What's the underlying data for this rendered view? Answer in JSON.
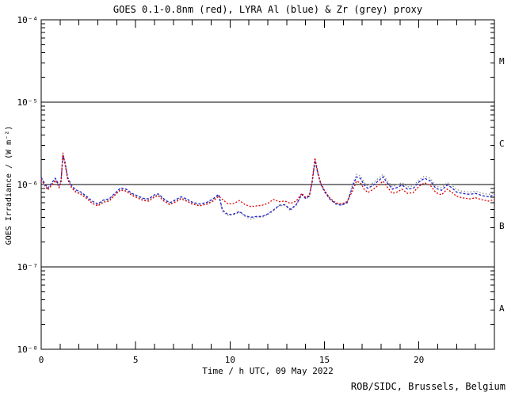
{
  "figure": {
    "credit": "ROB/SIDC, Brussels, Belgium"
  },
  "chart_data": {
    "type": "line",
    "title": "GOES 0.1-0.8nm (red), LYRA Al (blue) & Zr (grey) proxy",
    "xlabel": "Time / h UTC, 09 May 2022",
    "ylabel": "GOES Irradiance / (W m⁻²)",
    "grid": false,
    "legend_position": "none",
    "x_axis": {
      "min": 0,
      "max": 24,
      "minor_step": 1,
      "major_ticks": [
        0,
        5,
        10,
        15,
        20
      ],
      "tick_labels": [
        "0",
        "5",
        "10",
        "15",
        "20"
      ]
    },
    "y_axis": {
      "scale": "log",
      "min_exp": -8,
      "max_exp": -4,
      "ticks": [
        {
          "exp": -4,
          "label": "10⁻⁴"
        },
        {
          "exp": -5,
          "label": "10⁻⁵"
        },
        {
          "exp": -6,
          "label": "10⁻⁶"
        },
        {
          "exp": -7,
          "label": "10⁻⁷"
        },
        {
          "exp": -8,
          "label": "10⁻⁸"
        }
      ]
    },
    "hlines": [
      1e-05,
      1e-06,
      1e-07
    ],
    "flare_classes": [
      {
        "label": "M",
        "mid_exp": -4.5
      },
      {
        "label": "C",
        "mid_exp": -5.5
      },
      {
        "label": "B",
        "mid_exp": -6.5
      },
      {
        "label": "A",
        "mid_exp": -7.5
      }
    ],
    "series": [
      {
        "name": "LYRA Zr proxy",
        "color": "#909090",
        "dash": "1.5 2.5",
        "points": [
          [
            0.0,
            1.18e-06
          ],
          [
            0.15,
            1.02e-06
          ],
          [
            0.35,
            8.8e-07
          ],
          [
            0.55,
            1e-06
          ],
          [
            0.75,
            1.15e-06
          ],
          [
            0.95,
            9.5e-07
          ],
          [
            1.05,
            1.08e-06
          ],
          [
            1.15,
            2.45e-06
          ],
          [
            1.25,
            1.95e-06
          ],
          [
            1.4,
            1.18e-06
          ],
          [
            1.6,
            9.5e-07
          ],
          [
            1.8,
            8.4e-07
          ],
          [
            2.1,
            7.8e-07
          ],
          [
            2.4,
            7e-07
          ],
          [
            2.7,
            6e-07
          ],
          [
            3.0,
            5.6e-07
          ],
          [
            3.3,
            6.3e-07
          ],
          [
            3.6,
            6.5e-07
          ],
          [
            3.9,
            7.6e-07
          ],
          [
            4.2,
            8.8e-07
          ],
          [
            4.5,
            8.5e-07
          ],
          [
            4.8,
            7.6e-07
          ],
          [
            5.1,
            7.1e-07
          ],
          [
            5.4,
            6.6e-07
          ],
          [
            5.7,
            6.5e-07
          ],
          [
            6.0,
            7.3e-07
          ],
          [
            6.2,
            7.5e-07
          ],
          [
            6.5,
            6.5e-07
          ],
          [
            6.8,
            5.8e-07
          ],
          [
            7.1,
            6.3e-07
          ],
          [
            7.4,
            6.9e-07
          ],
          [
            7.7,
            6.5e-07
          ],
          [
            8.0,
            5.9e-07
          ],
          [
            8.4,
            5.6e-07
          ],
          [
            8.8,
            5.9e-07
          ],
          [
            9.1,
            6.5e-07
          ],
          [
            9.4,
            7.4e-07
          ],
          [
            9.6,
            4.7e-07
          ],
          [
            9.9,
            4.2e-07
          ],
          [
            10.2,
            4.3e-07
          ],
          [
            10.5,
            4.6e-07
          ],
          [
            10.8,
            4.1e-07
          ],
          [
            11.1,
            3.8e-07
          ],
          [
            11.4,
            4e-07
          ],
          [
            11.7,
            4e-07
          ],
          [
            12.0,
            4.3e-07
          ],
          [
            12.3,
            4.8e-07
          ],
          [
            12.6,
            5.5e-07
          ],
          [
            12.9,
            5.6e-07
          ],
          [
            13.2,
            4.8e-07
          ],
          [
            13.5,
            5.6e-07
          ],
          [
            13.8,
            7.5e-07
          ],
          [
            14.0,
            6.7e-07
          ],
          [
            14.2,
            7.1e-07
          ],
          [
            14.35,
            1.1e-06
          ],
          [
            14.5,
            2.05e-06
          ],
          [
            14.65,
            1.38e-06
          ],
          [
            14.8,
            1.04e-06
          ],
          [
            15.0,
            8.4e-07
          ],
          [
            15.3,
            6.7e-07
          ],
          [
            15.6,
            5.9e-07
          ],
          [
            15.9,
            5.7e-07
          ],
          [
            16.2,
            6.1e-07
          ],
          [
            16.5,
            1.02e-06
          ],
          [
            16.7,
            1.33e-06
          ],
          [
            16.9,
            1.27e-06
          ],
          [
            17.1,
            1.06e-06
          ],
          [
            17.3,
            9.6e-07
          ],
          [
            17.6,
            1.06e-06
          ],
          [
            17.9,
            1.21e-06
          ],
          [
            18.1,
            1.33e-06
          ],
          [
            18.3,
            1.14e-06
          ],
          [
            18.6,
            9.4e-07
          ],
          [
            18.9,
            1e-06
          ],
          [
            19.1,
            1.06e-06
          ],
          [
            19.4,
            9.4e-07
          ],
          [
            19.7,
            9.6e-07
          ],
          [
            20.0,
            1.14e-06
          ],
          [
            20.3,
            1.27e-06
          ],
          [
            20.6,
            1.19e-06
          ],
          [
            20.9,
            9.6e-07
          ],
          [
            21.2,
            9.1e-07
          ],
          [
            21.5,
            1.06e-06
          ],
          [
            21.7,
            1e-06
          ],
          [
            22.0,
            8.7e-07
          ],
          [
            22.3,
            8.3e-07
          ],
          [
            22.7,
            8.1e-07
          ],
          [
            23.0,
            8.3e-07
          ],
          [
            23.4,
            7.8e-07
          ],
          [
            23.7,
            7.6e-07
          ],
          [
            24.0,
            8e-07
          ]
        ]
      },
      {
        "name": "LYRA Al proxy",
        "color": "#2222cc",
        "dash": "3 2",
        "points": [
          [
            0.0,
            1.22e-06
          ],
          [
            0.15,
            1.06e-06
          ],
          [
            0.35,
            9.1e-07
          ],
          [
            0.55,
            1.04e-06
          ],
          [
            0.75,
            1.19e-06
          ],
          [
            0.95,
            9.8e-07
          ],
          [
            1.05,
            1.11e-06
          ],
          [
            1.15,
            2.2e-06
          ],
          [
            1.25,
            1.91e-06
          ],
          [
            1.4,
            1.22e-06
          ],
          [
            1.6,
            9.8e-07
          ],
          [
            1.8,
            8.7e-07
          ],
          [
            2.1,
            8.1e-07
          ],
          [
            2.4,
            7.2e-07
          ],
          [
            2.7,
            6.3e-07
          ],
          [
            3.0,
            5.8e-07
          ],
          [
            3.3,
            6.5e-07
          ],
          [
            3.6,
            6.7e-07
          ],
          [
            3.9,
            7.8e-07
          ],
          [
            4.2,
            9.1e-07
          ],
          [
            4.5,
            8.8e-07
          ],
          [
            4.8,
            7.8e-07
          ],
          [
            5.1,
            7.3e-07
          ],
          [
            5.4,
            6.8e-07
          ],
          [
            5.7,
            6.7e-07
          ],
          [
            6.0,
            7.5e-07
          ],
          [
            6.2,
            7.7e-07
          ],
          [
            6.5,
            6.7e-07
          ],
          [
            6.8,
            6e-07
          ],
          [
            7.1,
            6.5e-07
          ],
          [
            7.4,
            7.1e-07
          ],
          [
            7.7,
            6.7e-07
          ],
          [
            8.0,
            6.1e-07
          ],
          [
            8.4,
            5.8e-07
          ],
          [
            8.8,
            6.1e-07
          ],
          [
            9.1,
            6.7e-07
          ],
          [
            9.4,
            7.6e-07
          ],
          [
            9.6,
            4.9e-07
          ],
          [
            9.9,
            4.3e-07
          ],
          [
            10.2,
            4.4e-07
          ],
          [
            10.5,
            4.7e-07
          ],
          [
            10.8,
            4.2e-07
          ],
          [
            11.1,
            4e-07
          ],
          [
            11.4,
            4.1e-07
          ],
          [
            11.7,
            4.1e-07
          ],
          [
            12.0,
            4.4e-07
          ],
          [
            12.3,
            4.9e-07
          ],
          [
            12.6,
            5.6e-07
          ],
          [
            12.9,
            5.7e-07
          ],
          [
            13.2,
            5e-07
          ],
          [
            13.5,
            5.7e-07
          ],
          [
            13.8,
            7.6e-07
          ],
          [
            14.0,
            6.8e-07
          ],
          [
            14.2,
            7.2e-07
          ],
          [
            14.35,
            1.07e-06
          ],
          [
            14.5,
            1.95e-06
          ],
          [
            14.65,
            1.36e-06
          ],
          [
            14.8,
            1.02e-06
          ],
          [
            15.0,
            8.2e-07
          ],
          [
            15.3,
            6.6e-07
          ],
          [
            15.6,
            5.8e-07
          ],
          [
            15.9,
            5.6e-07
          ],
          [
            16.2,
            6e-07
          ],
          [
            16.5,
            9.6e-07
          ],
          [
            16.7,
            1.24e-06
          ],
          [
            16.9,
            1.19e-06
          ],
          [
            17.1,
            9.9e-07
          ],
          [
            17.3,
            9e-07
          ],
          [
            17.6,
            9.9e-07
          ],
          [
            17.9,
            1.13e-06
          ],
          [
            18.1,
            1.24e-06
          ],
          [
            18.3,
            1.07e-06
          ],
          [
            18.6,
            8.8e-07
          ],
          [
            18.9,
            9.3e-07
          ],
          [
            19.1,
            9.9e-07
          ],
          [
            19.4,
            8.8e-07
          ],
          [
            19.7,
            9e-07
          ],
          [
            20.0,
            1.07e-06
          ],
          [
            20.3,
            1.19e-06
          ],
          [
            20.6,
            1.11e-06
          ],
          [
            20.9,
            9e-07
          ],
          [
            21.2,
            8.5e-07
          ],
          [
            21.5,
            9.9e-07
          ],
          [
            21.7,
            9.3e-07
          ],
          [
            22.0,
            8.1e-07
          ],
          [
            22.3,
            7.8e-07
          ],
          [
            22.7,
            7.6e-07
          ],
          [
            23.0,
            7.8e-07
          ],
          [
            23.4,
            7.3e-07
          ],
          [
            23.7,
            7.1e-07
          ],
          [
            24.0,
            7.5e-07
          ]
        ]
      },
      {
        "name": "GOES 0.1-0.8nm",
        "color": "#dd0000",
        "dash": "2 2",
        "points": [
          [
            0.0,
            1.15e-06
          ],
          [
            0.15,
            1e-06
          ],
          [
            0.35,
            8.6e-07
          ],
          [
            0.55,
            9.8e-07
          ],
          [
            0.75,
            1.12e-06
          ],
          [
            0.95,
            9.2e-07
          ],
          [
            1.05,
            1.05e-06
          ],
          [
            1.15,
            2.4e-06
          ],
          [
            1.25,
            1.8e-06
          ],
          [
            1.4,
            1.15e-06
          ],
          [
            1.6,
            9.2e-07
          ],
          [
            1.8,
            8.2e-07
          ],
          [
            2.1,
            7.6e-07
          ],
          [
            2.4,
            6.8e-07
          ],
          [
            2.7,
            5.9e-07
          ],
          [
            3.0,
            5.5e-07
          ],
          [
            3.3,
            6.1e-07
          ],
          [
            3.6,
            6.3e-07
          ],
          [
            3.9,
            7.4e-07
          ],
          [
            4.2,
            8.6e-07
          ],
          [
            4.5,
            8.3e-07
          ],
          [
            4.8,
            7.4e-07
          ],
          [
            5.1,
            6.9e-07
          ],
          [
            5.4,
            6.4e-07
          ],
          [
            5.7,
            6.3e-07
          ],
          [
            6.0,
            7.1e-07
          ],
          [
            6.2,
            7.3e-07
          ],
          [
            6.5,
            6.3e-07
          ],
          [
            6.8,
            5.7e-07
          ],
          [
            7.1,
            6.1e-07
          ],
          [
            7.4,
            6.7e-07
          ],
          [
            7.7,
            6.3e-07
          ],
          [
            8.0,
            5.8e-07
          ],
          [
            8.4,
            5.5e-07
          ],
          [
            8.8,
            5.8e-07
          ],
          [
            9.1,
            6.3e-07
          ],
          [
            9.4,
            7.2e-07
          ],
          [
            9.6,
            6.6e-07
          ],
          [
            9.9,
            5.8e-07
          ],
          [
            10.2,
            5.9e-07
          ],
          [
            10.5,
            6.4e-07
          ],
          [
            10.8,
            5.7e-07
          ],
          [
            11.1,
            5.4e-07
          ],
          [
            11.4,
            5.5e-07
          ],
          [
            11.7,
            5.6e-07
          ],
          [
            12.0,
            5.9e-07
          ],
          [
            12.3,
            6.6e-07
          ],
          [
            12.6,
            6.2e-07
          ],
          [
            12.9,
            6.3e-07
          ],
          [
            13.2,
            5.9e-07
          ],
          [
            13.5,
            6.3e-07
          ],
          [
            13.8,
            7.8e-07
          ],
          [
            14.0,
            7e-07
          ],
          [
            14.2,
            7.4e-07
          ],
          [
            14.35,
            1.1e-06
          ],
          [
            14.5,
            2.1e-06
          ],
          [
            14.65,
            1.4e-06
          ],
          [
            14.8,
            1.05e-06
          ],
          [
            15.0,
            8.5e-07
          ],
          [
            15.3,
            6.8e-07
          ],
          [
            15.6,
            6e-07
          ],
          [
            15.9,
            5.8e-07
          ],
          [
            16.2,
            6.2e-07
          ],
          [
            16.5,
            8.5e-07
          ],
          [
            16.7,
            1.1e-06
          ],
          [
            16.9,
            1.05e-06
          ],
          [
            17.1,
            8.8e-07
          ],
          [
            17.3,
            8e-07
          ],
          [
            17.6,
            8.8e-07
          ],
          [
            17.9,
            1e-06
          ],
          [
            18.1,
            1.1e-06
          ],
          [
            18.3,
            9.5e-07
          ],
          [
            18.6,
            7.8e-07
          ],
          [
            18.9,
            8.2e-07
          ],
          [
            19.1,
            8.8e-07
          ],
          [
            19.4,
            7.8e-07
          ],
          [
            19.7,
            8e-07
          ],
          [
            20.0,
            9.5e-07
          ],
          [
            20.3,
            1.05e-06
          ],
          [
            20.6,
            9.8e-07
          ],
          [
            20.9,
            8e-07
          ],
          [
            21.2,
            7.5e-07
          ],
          [
            21.5,
            8.8e-07
          ],
          [
            21.7,
            8.2e-07
          ],
          [
            22.0,
            7.2e-07
          ],
          [
            22.3,
            6.9e-07
          ],
          [
            22.7,
            6.7e-07
          ],
          [
            23.0,
            6.9e-07
          ],
          [
            23.4,
            6.5e-07
          ],
          [
            23.7,
            6.3e-07
          ],
          [
            24.0,
            6.6e-07
          ]
        ]
      }
    ]
  }
}
